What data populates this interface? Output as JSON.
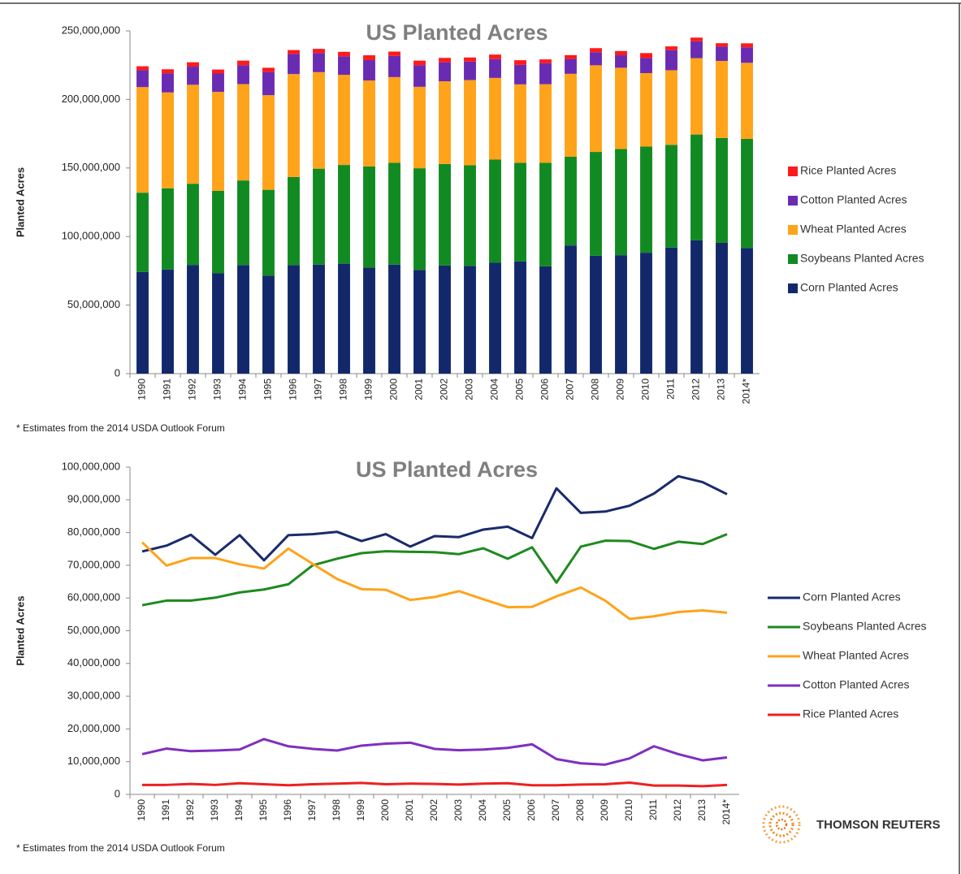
{
  "chart_data": [
    {
      "type": "stacked_bar",
      "title": "US Planted Acres",
      "y_label": "Planted Acres",
      "note": "* Estimates from the 2014 USDA Outlook Forum",
      "categories": [
        "1990",
        "1991",
        "1992",
        "1993",
        "1994",
        "1995",
        "1996",
        "1997",
        "1998",
        "1999",
        "2000",
        "2001",
        "2002",
        "2003",
        "2004",
        "2005",
        "2006",
        "2007",
        "2008",
        "2009",
        "2010",
        "2011",
        "2012",
        "2013",
        "2014*"
      ],
      "ylim": [
        0,
        250000000
      ],
      "yticks": [
        0,
        {
          "value": 50000000,
          "label": "50,000,000"
        },
        {
          "value": 100000000,
          "label": "100,000,000"
        },
        {
          "value": 150000000,
          "label": "150,000,000"
        },
        {
          "value": 200000000,
          "label": "200,000,000"
        },
        {
          "value": 250000000,
          "label": "250,000,000"
        }
      ],
      "grid": false,
      "series": [
        {
          "name": "Corn Planted Acres",
          "color": "#13286b",
          "values": [
            74200000,
            76000000,
            79300000,
            73200000,
            79200000,
            71500000,
            79200000,
            79500000,
            80200000,
            77400000,
            79500000,
            75700000,
            78900000,
            78600000,
            80900000,
            81800000,
            78300000,
            93500000,
            86000000,
            86400000,
            88200000,
            91900000,
            97200000,
            95400000,
            91700000
          ]
        },
        {
          "name": "Soybeans Planted Acres",
          "color": "#118a22",
          "values": [
            57800000,
            59200000,
            59200000,
            60100000,
            61700000,
            62600000,
            64200000,
            70000000,
            72000000,
            73700000,
            74300000,
            74100000,
            74000000,
            73400000,
            75200000,
            72000000,
            75500000,
            64700000,
            75700000,
            77500000,
            77400000,
            75000000,
            77200000,
            76500000,
            79500000
          ]
        },
        {
          "name": "Wheat Planted Acres",
          "color": "#ffa31a",
          "values": [
            77000000,
            69900000,
            72200000,
            72200000,
            70300000,
            69000000,
            75100000,
            70400000,
            65800000,
            62700000,
            62500000,
            59400000,
            60300000,
            62100000,
            59600000,
            57200000,
            57300000,
            60500000,
            63200000,
            59200000,
            53600000,
            54400000,
            55700000,
            56200000,
            55500000
          ]
        },
        {
          "name": "Cotton Planted Acres",
          "color": "#6a2bb3",
          "values": [
            12300000,
            14000000,
            13200000,
            13400000,
            13700000,
            16900000,
            14700000,
            13900000,
            13400000,
            14900000,
            15500000,
            15800000,
            13900000,
            13500000,
            13700000,
            14200000,
            15300000,
            10800000,
            9500000,
            9100000,
            11000000,
            14700000,
            12300000,
            10400000,
            11300000
          ]
        },
        {
          "name": "Rice Planted Acres",
          "color": "#ff1a1a",
          "values": [
            2900000,
            2900000,
            3200000,
            2900000,
            3400000,
            3100000,
            2800000,
            3100000,
            3300000,
            3500000,
            3100000,
            3300000,
            3200000,
            3000000,
            3300000,
            3400000,
            2800000,
            2800000,
            3000000,
            3100000,
            3600000,
            2700000,
            2700000,
            2500000,
            2900000
          ]
        }
      ]
    },
    {
      "type": "line",
      "title": "US Planted Acres",
      "y_label": "Planted Acres",
      "note": "* Estimates from the 2014 USDA Outlook Forum",
      "categories": [
        "1990",
        "1991",
        "1992",
        "1993",
        "1994",
        "1995",
        "1996",
        "1997",
        "1998",
        "1999",
        "2000",
        "2001",
        "2002",
        "2003",
        "2004",
        "2005",
        "2006",
        "2007",
        "2008",
        "2009",
        "2010",
        "2011",
        "2012",
        "2013",
        "2014*"
      ],
      "ylim": [
        0,
        100000000
      ],
      "yticks": [
        0,
        {
          "value": 10000000,
          "label": "10,000,000"
        },
        {
          "value": 20000000,
          "label": "20,000,000"
        },
        {
          "value": 30000000,
          "label": "30,000,000"
        },
        {
          "value": 40000000,
          "label": "40,000,000"
        },
        {
          "value": 50000000,
          "label": "50,000,000"
        },
        {
          "value": 60000000,
          "label": "60,000,000"
        },
        {
          "value": 70000000,
          "label": "70,000,000"
        },
        {
          "value": 80000000,
          "label": "80,000,000"
        },
        {
          "value": 90000000,
          "label": "90,000,000"
        },
        {
          "value": 100000000,
          "label": "100,000,000"
        }
      ],
      "grid": false,
      "series": [
        {
          "name": "Corn Planted Acres",
          "color": "#1a2b6b",
          "values": [
            74200000,
            76000000,
            79300000,
            73200000,
            79200000,
            71500000,
            79200000,
            79500000,
            80200000,
            77400000,
            79500000,
            75700000,
            78900000,
            78600000,
            80900000,
            81800000,
            78300000,
            93500000,
            86000000,
            86400000,
            88200000,
            91900000,
            97200000,
            95400000,
            91700000
          ]
        },
        {
          "name": "Soybeans Planted Acres",
          "color": "#1e8a1e",
          "values": [
            57800000,
            59200000,
            59200000,
            60100000,
            61700000,
            62600000,
            64200000,
            70000000,
            72000000,
            73700000,
            74300000,
            74100000,
            74000000,
            73400000,
            75200000,
            72000000,
            75500000,
            64700000,
            75700000,
            77500000,
            77400000,
            75000000,
            77200000,
            76500000,
            79500000
          ]
        },
        {
          "name": "Wheat Planted Acres",
          "color": "#ffa31a",
          "values": [
            77000000,
            69900000,
            72200000,
            72200000,
            70300000,
            69000000,
            75100000,
            70400000,
            65800000,
            62700000,
            62500000,
            59400000,
            60300000,
            62100000,
            59600000,
            57200000,
            57300000,
            60500000,
            63200000,
            59200000,
            53600000,
            54400000,
            55700000,
            56200000,
            55500000
          ]
        },
        {
          "name": "Cotton Planted Acres",
          "color": "#7f2fbf",
          "values": [
            12300000,
            14000000,
            13200000,
            13400000,
            13700000,
            16900000,
            14700000,
            13900000,
            13400000,
            14900000,
            15500000,
            15800000,
            13900000,
            13500000,
            13700000,
            14200000,
            15300000,
            10800000,
            9500000,
            9100000,
            11000000,
            14700000,
            12300000,
            10400000,
            11300000
          ]
        },
        {
          "name": "Rice Planted Acres",
          "color": "#ee2020",
          "values": [
            2900000,
            2900000,
            3200000,
            2900000,
            3400000,
            3100000,
            2800000,
            3100000,
            3300000,
            3500000,
            3100000,
            3300000,
            3200000,
            3000000,
            3300000,
            3400000,
            2800000,
            2800000,
            3000000,
            3100000,
            3600000,
            2700000,
            2700000,
            2500000,
            2900000
          ]
        }
      ]
    }
  ],
  "logo": {
    "text": "THOMSON REUTERS"
  }
}
